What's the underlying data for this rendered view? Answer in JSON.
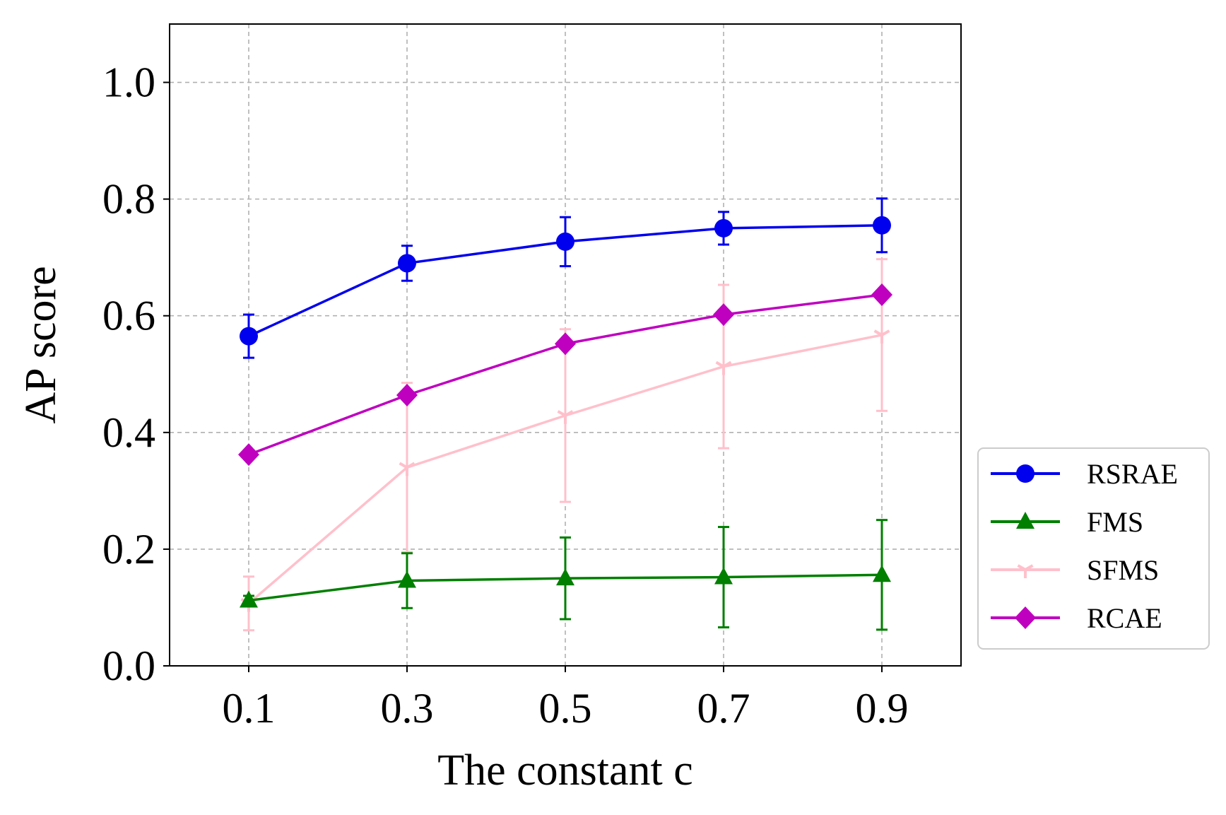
{
  "chart_data": {
    "type": "line",
    "xlabel": "The constant c",
    "ylabel": "AP score",
    "x": [
      0.1,
      0.3,
      0.5,
      0.7,
      0.9
    ],
    "x_tick_labels": [
      "0.1",
      "0.3",
      "0.5",
      "0.7",
      "0.9"
    ],
    "xlim": [
      0.0,
      1.0
    ],
    "ylim": [
      0.0,
      1.1
    ],
    "y_ticks": [
      0.0,
      0.2,
      0.4,
      0.6,
      0.8,
      1.0
    ],
    "y_tick_labels": [
      "0.0",
      "0.2",
      "0.4",
      "0.6",
      "0.8",
      "1.0"
    ],
    "grid": true,
    "legend_position": "right-outside",
    "series": [
      {
        "name": "RSRAE",
        "color": "#0000ee",
        "marker": "circle",
        "values": [
          0.565,
          0.69,
          0.727,
          0.75,
          0.755
        ],
        "errors": [
          0.037,
          0.03,
          0.042,
          0.028,
          0.046
        ]
      },
      {
        "name": "FMS",
        "color": "#007f00",
        "marker": "triangle",
        "values": [
          0.112,
          0.146,
          0.15,
          0.152,
          0.156
        ],
        "errors": [
          0.008,
          0.047,
          0.07,
          0.086,
          0.094
        ]
      },
      {
        "name": "SFMS",
        "color": "#ffc0cb",
        "marker": "tri-down",
        "values": [
          0.107,
          0.34,
          0.429,
          0.513,
          0.567
        ],
        "errors": [
          0.046,
          0.145,
          0.148,
          0.14,
          0.13
        ]
      },
      {
        "name": "RCAE",
        "color": "#bf00bf",
        "marker": "diamond",
        "values": [
          0.362,
          0.464,
          0.552,
          0.602,
          0.636
        ],
        "errors": [
          0.0,
          0.0,
          0.0,
          0.0,
          0.0
        ]
      }
    ]
  }
}
